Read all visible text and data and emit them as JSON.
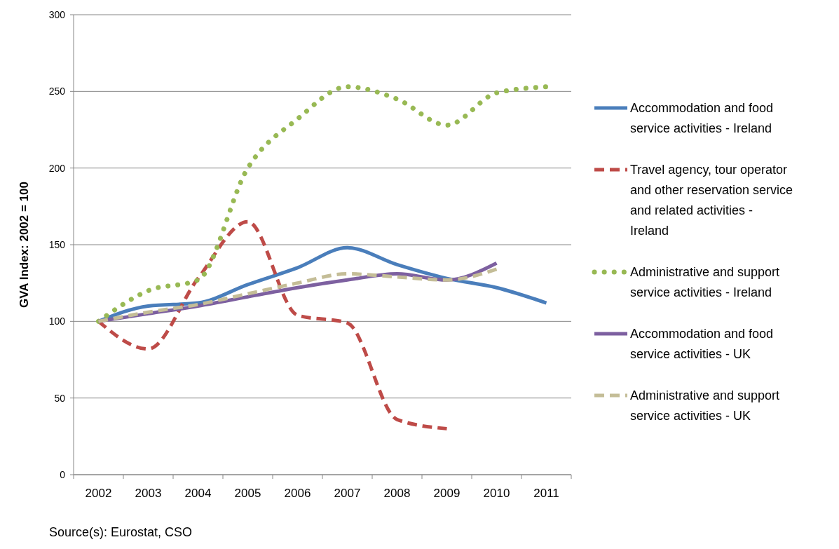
{
  "chart_data": {
    "type": "line",
    "ylabel": "GVA Index: 2002 = 100",
    "categories": [
      "2002",
      "2003",
      "2004",
      "2005",
      "2006",
      "2007",
      "2008",
      "2009",
      "2010",
      "2011"
    ],
    "series": [
      {
        "name": "Accommodation and food service activities - Ireland",
        "color": "#4a7ebb",
        "line_style": "solid",
        "values": [
          100,
          110,
          112,
          124,
          135,
          148,
          137,
          128,
          122,
          112
        ]
      },
      {
        "name": "Travel agency, tour operator and other reservation service and related activities - Ireland",
        "color": "#be4b48",
        "line_style": "dashed",
        "values": [
          100,
          82,
          128,
          165,
          104,
          99,
          36,
          30,
          null,
          null
        ]
      },
      {
        "name": "Administrative and support service activities - Ireland",
        "color": "#98b954",
        "line_style": "dotted",
        "values": [
          100,
          120,
          127,
          200,
          232,
          253,
          245,
          228,
          249,
          253
        ]
      },
      {
        "name": "Accommodation and food service activities - UK",
        "color": "#7d60a0",
        "line_style": "solid",
        "values": [
          100,
          105,
          110,
          116,
          122,
          127,
          131,
          127,
          138,
          null
        ]
      },
      {
        "name": "Administrative and support service activities - UK",
        "color": "#c4bd97",
        "line_style": "dashed",
        "values": [
          100,
          106,
          111,
          118,
          125,
          131,
          129,
          127,
          134,
          null
        ]
      }
    ],
    "ylim": [
      0,
      300
    ],
    "yticks": [
      0,
      50,
      100,
      150,
      200,
      250,
      300
    ],
    "grid": "y",
    "legend": "right",
    "marker": "none",
    "annotations": [
      "Source(s): Eurostat, CSO"
    ]
  }
}
